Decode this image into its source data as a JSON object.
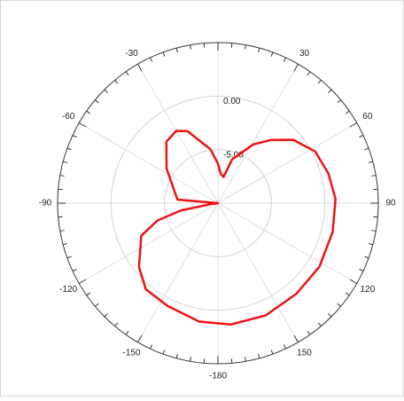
{
  "chart_data": {
    "type": "polar",
    "color": "#ee1111",
    "rlim": [
      -10,
      5
    ],
    "rticks": [
      {
        "value": -5,
        "label": "-5.00"
      },
      {
        "value": 0,
        "label": "0.00"
      }
    ],
    "thetaticks": [
      -180,
      -150,
      -120,
      -90,
      -60,
      -30,
      30,
      60,
      90,
      120,
      150
    ],
    "grid": true,
    "x": [
      -171,
      -154,
      -140,
      -129,
      -113,
      -106,
      -101,
      -97,
      -93,
      -85,
      -56,
      -40,
      -30,
      -23,
      -8,
      0,
      5,
      12,
      18,
      31,
      40,
      50,
      62,
      75,
      88,
      104,
      122,
      139,
      157,
      174
    ],
    "values": [
      1.2,
      0.7,
      0.5,
      -0.5,
      -2.2,
      -4.1,
      -6.5,
      -9.5,
      -10,
      -6.2,
      -4.2,
      -2.5,
      -2.2,
      -2.7,
      -4.9,
      -6.3,
      -7.2,
      -7.5,
      -5.7,
      -3.6,
      -2.3,
      -0.8,
      0.3,
      0.7,
      1.0,
      1.06,
      1.2,
      1.2,
      1.4,
      1.4
    ]
  }
}
